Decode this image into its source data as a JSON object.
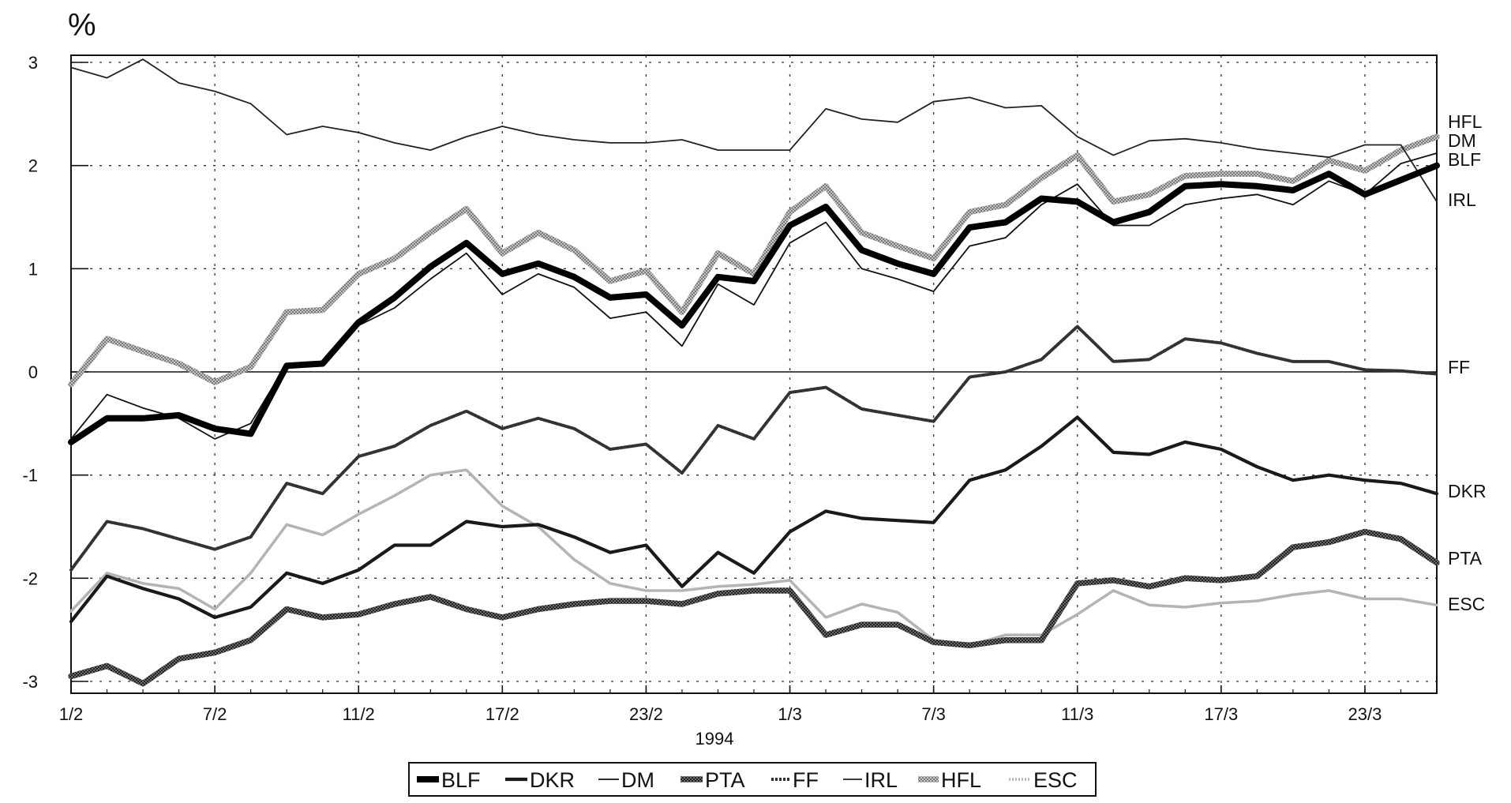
{
  "chart_data": {
    "type": "line",
    "title": "",
    "unit_label": "%",
    "xlabel": "1994",
    "ylabel": "",
    "ylim": [
      -3.1,
      3.1
    ],
    "y_ticks": [
      "3",
      "2",
      "1",
      "0",
      "-1",
      "-2",
      "-3"
    ],
    "x_tick_labels": [
      "1/2",
      "7/2",
      "11/2",
      "17/2",
      "23/2",
      "1/3",
      "7/3",
      "11/3",
      "17/3",
      "23/3"
    ],
    "x_tick_indices": [
      0,
      4,
      8,
      12,
      16,
      20,
      24,
      28,
      32,
      36
    ],
    "num_points": 39,
    "grid": true,
    "legend_position": "bottom",
    "series": [
      {
        "name": "ESC",
        "end_label": "ESC",
        "color": "#b4b4b4",
        "style": "light-dotted",
        "values": [
          -2.32,
          -1.95,
          -2.05,
          -2.1,
          -2.3,
          -1.95,
          -1.48,
          -1.58,
          -1.38,
          -1.2,
          -1.0,
          -0.95,
          -1.3,
          -1.5,
          -1.82,
          -2.05,
          -2.12,
          -2.12,
          -2.08,
          -2.06,
          -2.02,
          -2.38,
          -2.25,
          -2.33,
          -2.6,
          -2.65,
          -2.55,
          -2.55,
          -2.35,
          -2.12,
          -2.26,
          -2.28,
          -2.24,
          -2.22,
          -2.16,
          -2.12,
          -2.2,
          -2.2,
          -2.26
        ]
      },
      {
        "name": "HFL",
        "end_label": "HFL",
        "color": "#9a9a9a",
        "style": "hatched-thick",
        "values": [
          -0.12,
          0.32,
          0.2,
          0.08,
          -0.1,
          0.05,
          0.58,
          0.6,
          0.95,
          1.1,
          1.35,
          1.58,
          1.15,
          1.35,
          1.18,
          0.88,
          0.98,
          0.58,
          1.15,
          0.95,
          1.55,
          1.8,
          1.35,
          1.22,
          1.1,
          1.55,
          1.62,
          1.88,
          2.1,
          1.65,
          1.72,
          1.9,
          1.92,
          1.92,
          1.85,
          2.05,
          1.95,
          2.15,
          2.28
        ]
      },
      {
        "name": "IRL",
        "end_label": "IRL",
        "color": "#222222",
        "style": "thin",
        "values": [
          2.95,
          2.85,
          3.03,
          2.8,
          2.72,
          2.6,
          2.3,
          2.38,
          2.32,
          2.22,
          2.15,
          2.28,
          2.38,
          2.3,
          2.25,
          2.22,
          2.22,
          2.25,
          2.15,
          2.15,
          2.15,
          2.55,
          2.45,
          2.42,
          2.62,
          2.66,
          2.56,
          2.58,
          2.28,
          2.1,
          2.24,
          2.26,
          2.22,
          2.16,
          2.12,
          2.08,
          2.2,
          2.2,
          1.65
        ]
      },
      {
        "name": "DM",
        "end_label": "DM",
        "color": "#111111",
        "style": "thin",
        "values": [
          -0.65,
          -0.22,
          -0.35,
          -0.45,
          -0.65,
          -0.5,
          0.08,
          0.1,
          0.45,
          0.62,
          0.9,
          1.15,
          0.75,
          0.95,
          0.82,
          0.52,
          0.58,
          0.25,
          0.85,
          0.65,
          1.25,
          1.45,
          1.0,
          0.9,
          0.78,
          1.22,
          1.3,
          1.62,
          1.82,
          1.42,
          1.42,
          1.62,
          1.68,
          1.72,
          1.62,
          1.85,
          1.72,
          2.02,
          2.12
        ]
      },
      {
        "name": "FF",
        "end_label": "FF",
        "color": "#333333",
        "style": "dotted-medium",
        "values": [
          -1.92,
          -1.45,
          -1.52,
          -1.62,
          -1.72,
          -1.6,
          -1.08,
          -1.18,
          -0.82,
          -0.72,
          -0.52,
          -0.38,
          -0.55,
          -0.45,
          -0.55,
          -0.75,
          -0.7,
          -0.98,
          -0.52,
          -0.65,
          -0.2,
          -0.15,
          -0.36,
          -0.42,
          -0.48,
          -0.05,
          0.0,
          0.12,
          0.44,
          0.1,
          0.12,
          0.32,
          0.28,
          0.18,
          0.1,
          0.1,
          0.02,
          0.01,
          -0.02
        ]
      },
      {
        "name": "DKR",
        "end_label": "DKR",
        "color": "#1a1a1a",
        "style": "medium",
        "values": [
          -2.42,
          -1.98,
          -2.1,
          -2.2,
          -2.38,
          -2.28,
          -1.95,
          -2.05,
          -1.92,
          -1.68,
          -1.68,
          -1.45,
          -1.5,
          -1.48,
          -1.6,
          -1.75,
          -1.68,
          -2.08,
          -1.75,
          -1.95,
          -1.55,
          -1.35,
          -1.42,
          -1.44,
          -1.46,
          -1.05,
          -0.95,
          -0.72,
          -0.44,
          -0.78,
          -0.8,
          -0.68,
          -0.75,
          -0.92,
          -1.05,
          -1.0,
          -1.05,
          -1.08,
          -1.18
        ]
      },
      {
        "name": "PTA",
        "end_label": "PTA",
        "color": "#444444",
        "style": "hatched-thick",
        "values": [
          -2.95,
          -2.85,
          -3.02,
          -2.78,
          -2.72,
          -2.6,
          -2.3,
          -2.38,
          -2.35,
          -2.25,
          -2.18,
          -2.3,
          -2.38,
          -2.3,
          -2.25,
          -2.22,
          -2.22,
          -2.25,
          -2.15,
          -2.12,
          -2.12,
          -2.55,
          -2.45,
          -2.45,
          -2.62,
          -2.65,
          -2.6,
          -2.6,
          -2.05,
          -2.02,
          -2.08,
          -2.0,
          -2.02,
          -1.98,
          -1.7,
          -1.65,
          -1.55,
          -1.62,
          -1.85
        ]
      },
      {
        "name": "BLF",
        "end_label": "BLF",
        "color": "#000000",
        "style": "thick",
        "values": [
          -0.68,
          -0.45,
          -0.45,
          -0.42,
          -0.55,
          -0.6,
          0.06,
          0.08,
          0.48,
          0.72,
          1.02,
          1.25,
          0.95,
          1.05,
          0.92,
          0.72,
          0.75,
          0.45,
          0.92,
          0.88,
          1.42,
          1.6,
          1.18,
          1.05,
          0.95,
          1.4,
          1.45,
          1.68,
          1.65,
          1.45,
          1.55,
          1.8,
          1.82,
          1.8,
          1.76,
          1.92,
          1.72,
          1.86,
          2.0
        ]
      }
    ],
    "legend_order": [
      "BLF",
      "DKR",
      "DM",
      "PTA",
      "FF",
      "IRL",
      "HFL",
      "ESC"
    ],
    "end_label_order": [
      "HFL",
      "DM",
      "BLF",
      "IRL",
      "FF",
      "DKR",
      "PTA",
      "ESC"
    ]
  }
}
